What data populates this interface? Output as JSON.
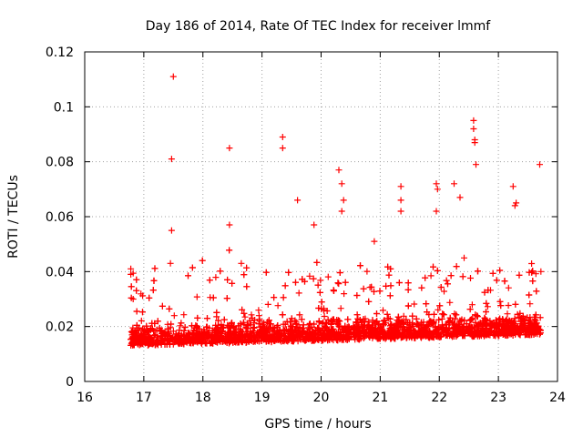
{
  "chart_data": {
    "type": "scatter",
    "title": "Day 186 of 2014, Rate Of TEC Index for receiver lmmf",
    "xlabel": "GPS time / hours",
    "ylabel": "ROTI / TECUs",
    "xlim": [
      16,
      24
    ],
    "ylim": [
      0,
      0.12
    ],
    "xticks": [
      16,
      17,
      18,
      19,
      20,
      21,
      22,
      23,
      24
    ],
    "xtick_labels": [
      "16",
      "17",
      "18",
      "19",
      "20",
      "21",
      "22",
      "23",
      "24"
    ],
    "yticks": [
      0,
      0.02,
      0.04,
      0.06,
      0.08,
      0.1,
      0.12
    ],
    "ytick_labels": [
      "0",
      "0.02",
      "0.04",
      "0.06",
      "0.08",
      "0.1",
      "0.12"
    ],
    "grid": true,
    "marker": "+",
    "color": "#ff0000",
    "data_range_x": [
      16.78,
      23.72
    ],
    "series": [
      {
        "name": "ROTI",
        "note": "dense cloud of points mostly between 0.005 and 0.035 TECU/s, representative outliers listed",
        "outliers": [
          [
            16.78,
            0.041
          ],
          [
            16.78,
            0.039
          ],
          [
            16.82,
            0.03
          ],
          [
            17.45,
            0.043
          ],
          [
            17.5,
            0.111
          ],
          [
            17.47,
            0.081
          ],
          [
            17.47,
            0.055
          ],
          [
            18.45,
            0.085
          ],
          [
            18.45,
            0.057
          ],
          [
            18.65,
            0.043
          ],
          [
            19.35,
            0.089
          ],
          [
            19.35,
            0.085
          ],
          [
            19.6,
            0.066
          ],
          [
            19.88,
            0.057
          ],
          [
            20.3,
            0.077
          ],
          [
            20.35,
            0.072
          ],
          [
            20.38,
            0.066
          ],
          [
            20.35,
            0.062
          ],
          [
            20.9,
            0.051
          ],
          [
            21.35,
            0.071
          ],
          [
            21.35,
            0.066
          ],
          [
            21.35,
            0.062
          ],
          [
            21.95,
            0.072
          ],
          [
            21.97,
            0.07
          ],
          [
            21.95,
            0.062
          ],
          [
            22.25,
            0.072
          ],
          [
            22.35,
            0.067
          ],
          [
            22.58,
            0.095
          ],
          [
            22.58,
            0.092
          ],
          [
            22.6,
            0.088
          ],
          [
            22.6,
            0.087
          ],
          [
            22.62,
            0.079
          ],
          [
            23.25,
            0.071
          ],
          [
            23.3,
            0.065
          ],
          [
            23.28,
            0.064
          ],
          [
            23.7,
            0.079
          ],
          [
            23.72,
            0.04
          ]
        ]
      }
    ]
  }
}
